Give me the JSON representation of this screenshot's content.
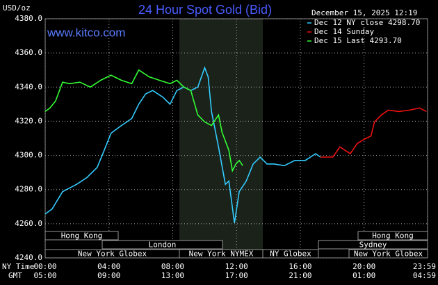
{
  "chart_data": {
    "type": "line",
    "title": "24 Hour Spot Gold (Bid)",
    "website": "www.kitco.com",
    "timestamp": "December 15, 2025 12:19",
    "y_label": "USD/oz",
    "x_label": "NY Time",
    "x2_label": "GMT",
    "xlim": [
      0,
      23.98
    ],
    "xticks": [
      {
        "value": 0,
        "label": "00:00"
      },
      {
        "value": 4,
        "label": "04:00"
      },
      {
        "value": 8,
        "label": "08:00"
      },
      {
        "value": 12,
        "label": "12:00"
      },
      {
        "value": 16,
        "label": "16:00"
      },
      {
        "value": 20,
        "label": "20:00"
      },
      {
        "value": 23.98,
        "label": "23:59"
      }
    ],
    "x2_labels": [
      "05:00",
      "09:00",
      "13:00",
      "17:00",
      "21:00",
      "01:00",
      "04:59"
    ],
    "ylim": [
      4240,
      4380
    ],
    "yticks": [
      {
        "value": 4240,
        "label": "4240.0"
      },
      {
        "value": 4260,
        "label": "4260.0"
      },
      {
        "value": 4280,
        "label": "4280.0"
      },
      {
        "value": 4300,
        "label": "4300.0"
      },
      {
        "value": 4320,
        "label": "4320.0"
      },
      {
        "value": 4340,
        "label": "4340.0"
      },
      {
        "value": 4360,
        "label": "4360.0"
      },
      {
        "value": 4380,
        "label": "4380.0"
      }
    ],
    "grid": true,
    "sessions": [
      "Hong Kong",
      "London",
      "New York Globex",
      "New York NYMEX",
      "NY Globex",
      "Hong Kong",
      "Sydney",
      "New York Globex"
    ],
    "series": [
      {
        "name": "Dec 12 NY close 4298.70",
        "color": "#33ccff",
        "x": [
          0,
          0.43,
          1.09,
          1.96,
          2.61,
          3.26,
          3.7,
          4.13,
          4.78,
          5.43,
          5.87,
          6.3,
          6.74,
          7.39,
          7.83,
          8.26,
          8.7,
          9.13,
          9.57,
          10,
          10.22,
          10.43,
          10.87,
          11.3,
          11.52,
          11.87,
          12.17,
          12.61,
          13.04,
          13.48,
          13.91,
          14.35,
          15,
          15.65,
          16.3,
          16.96,
          17.26
        ],
        "values": [
          4265.7,
          4268.6,
          4278.8,
          4283,
          4287,
          4293,
          4303,
          4313,
          4317.5,
          4321.6,
          4330,
          4336,
          4338,
          4334,
          4330,
          4338,
          4340,
          4338,
          4340,
          4351.4,
          4346,
          4325.7,
          4305,
          4283,
          4285,
          4260.4,
          4278.8,
          4285,
          4295,
          4299,
          4295,
          4295,
          4294,
          4297,
          4297,
          4301,
          4299
        ]
      },
      {
        "name": "Dec 14 Sunday",
        "color": "#ee1111",
        "x": [
          17.26,
          18.04,
          18.48,
          19.13,
          19.57,
          20,
          20.43,
          20.65,
          21.09,
          21.52,
          22.17,
          22.83,
          23.48,
          23.91
        ],
        "values": [
          4299,
          4299,
          4305,
          4301,
          4307,
          4309.4,
          4311.4,
          4319.6,
          4323.7,
          4326.5,
          4325.7,
          4326.5,
          4327.8,
          4325.7
        ]
      },
      {
        "name": "Dec 15 Last 4293.70",
        "color": "#33ff33",
        "x": [
          0,
          0.3,
          0.65,
          1.09,
          1.52,
          2.17,
          2.83,
          3.48,
          4.13,
          4.78,
          5.43,
          5.87,
          6.52,
          7.17,
          7.83,
          8.26,
          8.7,
          9.13,
          9.57,
          10,
          10.43,
          10.87,
          11.09,
          11.52,
          11.74,
          11.96,
          12.17,
          12.39
        ],
        "values": [
          4325.7,
          4327.8,
          4331.8,
          4342.9,
          4342,
          4342.9,
          4340,
          4344,
          4347,
          4344,
          4342,
          4350,
          4346,
          4344,
          4342,
          4344,
          4340,
          4338,
          4323.7,
          4319.6,
          4317.5,
          4323.7,
          4313.5,
          4303,
          4291,
          4295,
          4297,
          4294
        ]
      }
    ]
  }
}
